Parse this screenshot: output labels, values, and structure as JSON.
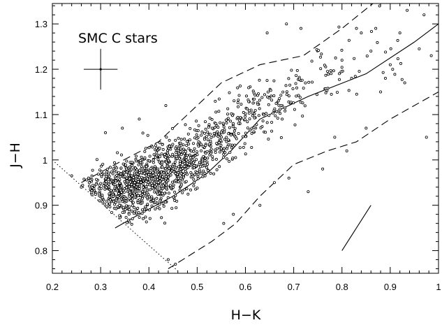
{
  "chart_data": {
    "type": "scatter",
    "title": "",
    "annotation": "SMC C stars",
    "xlabel": "H−K",
    "ylabel": "J−H",
    "xlim": [
      0.2,
      1.0
    ],
    "ylim": [
      0.75,
      1.345
    ],
    "x_ticks": [
      0.2,
      0.3,
      0.4,
      0.5,
      0.6,
      0.7,
      0.8,
      0.9,
      1.0
    ],
    "x_tick_labels": [
      "0.2",
      "0.3",
      "0.4",
      "0.5",
      "0.6",
      "0.7",
      "0.8",
      "0.9",
      "1"
    ],
    "y_ticks": [
      0.8,
      0.9,
      1.0,
      1.1,
      1.2,
      1.3
    ],
    "y_tick_labels": [
      "0.8",
      "0.9",
      "1",
      "1.1",
      "1.2",
      "1.3"
    ],
    "grid": false,
    "error_bar": {
      "x": 0.3,
      "y": 1.2,
      "xerr": 0.035,
      "yerr": 0.045
    },
    "reddening_vector": {
      "x": [
        0.8,
        0.86
      ],
      "y": [
        0.8,
        0.9
      ]
    },
    "solid_locus": {
      "x": [
        0.33,
        0.38,
        0.45,
        0.52,
        0.57,
        0.63,
        0.73,
        0.85,
        0.95,
        1.0
      ],
      "y": [
        0.85,
        0.88,
        0.92,
        0.97,
        1.02,
        1.09,
        1.14,
        1.19,
        1.26,
        1.3
      ]
    },
    "upper_dashed": {
      "x": [
        0.26,
        0.33,
        0.42,
        0.49,
        0.55,
        0.63,
        0.72,
        0.8,
        0.87
      ],
      "y": [
        0.95,
        0.99,
        1.04,
        1.11,
        1.17,
        1.21,
        1.23,
        1.29,
        1.35
      ]
    },
    "lower_dashed": {
      "x": [
        0.44,
        0.53,
        0.58,
        0.63,
        0.7,
        0.77,
        0.83,
        0.9,
        1.0
      ],
      "y": [
        0.76,
        0.82,
        0.86,
        0.92,
        0.99,
        1.02,
        1.04,
        1.09,
        1.15
      ]
    },
    "dotted_boundary": {
      "x": [
        0.205,
        0.46
      ],
      "y": [
        0.995,
        0.755
      ]
    },
    "points": {
      "count": 1400,
      "core": {
        "x": [
          0.26,
          0.3,
          0.35,
          0.4,
          0.45,
          0.5,
          0.55,
          0.6,
          0.65,
          0.7,
          0.75,
          0.8,
          0.85,
          0.9
        ],
        "center": [
          0.92,
          0.925,
          0.935,
          0.955,
          0.98,
          1.01,
          1.05,
          1.09,
          1.12,
          1.15,
          1.18,
          1.2,
          1.22,
          1.24
        ],
        "spread": [
          0.025,
          0.03,
          0.035,
          0.035,
          0.035,
          0.035,
          0.035,
          0.035,
          0.035,
          0.035,
          0.04,
          0.04,
          0.045,
          0.045
        ],
        "weight": [
          3,
          14,
          24,
          24,
          19,
          14,
          10,
          6,
          4,
          3,
          2,
          1.5,
          1,
          0.7
        ]
      },
      "outliers": [
        {
          "x": 0.935,
          "y": 1.33
        },
        {
          "x": 0.97,
          "y": 1.32
        },
        {
          "x": 0.92,
          "y": 1.28
        },
        {
          "x": 0.96,
          "y": 1.245
        },
        {
          "x": 0.985,
          "y": 1.23
        },
        {
          "x": 0.975,
          "y": 1.05
        },
        {
          "x": 0.85,
          "y": 1.07
        },
        {
          "x": 0.83,
          "y": 1.29
        },
        {
          "x": 0.84,
          "y": 1.28
        },
        {
          "x": 0.87,
          "y": 1.29
        },
        {
          "x": 0.685,
          "y": 1.3
        },
        {
          "x": 0.715,
          "y": 1.29
        },
        {
          "x": 0.645,
          "y": 1.28
        },
        {
          "x": 0.73,
          "y": 0.93
        },
        {
          "x": 0.69,
          "y": 0.96
        },
        {
          "x": 0.76,
          "y": 0.98
        },
        {
          "x": 0.81,
          "y": 1.02
        },
        {
          "x": 0.575,
          "y": 0.88
        },
        {
          "x": 0.63,
          "y": 0.9
        },
        {
          "x": 0.555,
          "y": 0.86
        },
        {
          "x": 0.66,
          "y": 0.95
        },
        {
          "x": 0.785,
          "y": 1.05
        },
        {
          "x": 0.9,
          "y": 1.21
        },
        {
          "x": 0.905,
          "y": 1.2
        },
        {
          "x": 0.93,
          "y": 1.17
        },
        {
          "x": 0.89,
          "y": 1.18
        },
        {
          "x": 0.88,
          "y": 1.15
        },
        {
          "x": 0.82,
          "y": 1.18
        },
        {
          "x": 0.86,
          "y": 1.24
        },
        {
          "x": 0.8,
          "y": 1.22
        },
        {
          "x": 0.275,
          "y": 0.96
        },
        {
          "x": 0.24,
          "y": 0.965
        },
        {
          "x": 0.26,
          "y": 0.94
        },
        {
          "x": 0.455,
          "y": 0.77
        },
        {
          "x": 0.44,
          "y": 0.78
        },
        {
          "x": 0.31,
          "y": 1.06
        },
        {
          "x": 0.345,
          "y": 1.07
        },
        {
          "x": 0.38,
          "y": 1.09
        },
        {
          "x": 0.435,
          "y": 1.12
        }
      ]
    }
  }
}
